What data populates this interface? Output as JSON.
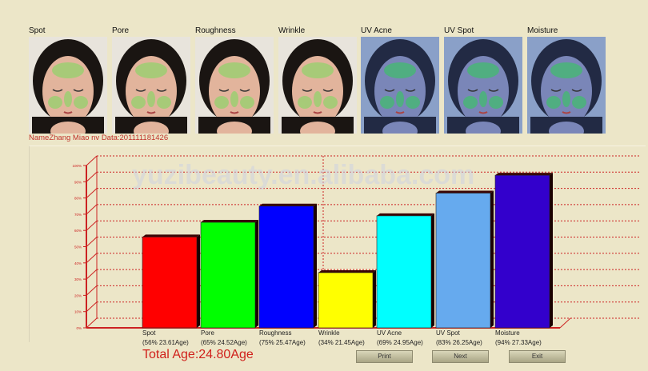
{
  "thumbnails": [
    {
      "label": "Spot",
      "type": "normal"
    },
    {
      "label": "Pore",
      "type": "normal"
    },
    {
      "label": "Roughness",
      "type": "normal"
    },
    {
      "label": "Wrinkle",
      "type": "normal"
    },
    {
      "label": "UV Acne",
      "type": "uv"
    },
    {
      "label": "UV Spot",
      "type": "uv"
    },
    {
      "label": "Moisture",
      "type": "uv"
    }
  ],
  "name_line": "NameZhang Miao nv Data:201111181426",
  "watermark": "yuzibeauty.en.alibaba.com",
  "chart_data": {
    "type": "bar",
    "categories": [
      "Spot",
      "Pore",
      "Roughness",
      "Wrinkle",
      "UV Acne",
      "UV Spot",
      "Moisture"
    ],
    "values": [
      56,
      65,
      75,
      34,
      69,
      83,
      94
    ],
    "labels": [
      "(56% 23.61Age)",
      "(65% 24.52Age)",
      "(75% 25.47Age)",
      "(34% 21.45Age)",
      "(69% 24.95Age)",
      "(83% 26.25Age)",
      "(94% 27.33Age)"
    ],
    "colors": [
      "#ff0000",
      "#00ff00",
      "#0000ff",
      "#ffff00",
      "#00ffff",
      "#66aaee",
      "#3300cc"
    ],
    "yticks": [
      "0%",
      "10%",
      "20%",
      "30%",
      "40%",
      "50%",
      "60%",
      "70%",
      "80%",
      "90%",
      "100%"
    ],
    "ylim": [
      0,
      100
    ],
    "grid": true,
    "axis_color": "#cc2222"
  },
  "total_age": "Total Age:24.80Age",
  "buttons": {
    "print": "Print",
    "next": "Next",
    "exit": "Exit"
  }
}
